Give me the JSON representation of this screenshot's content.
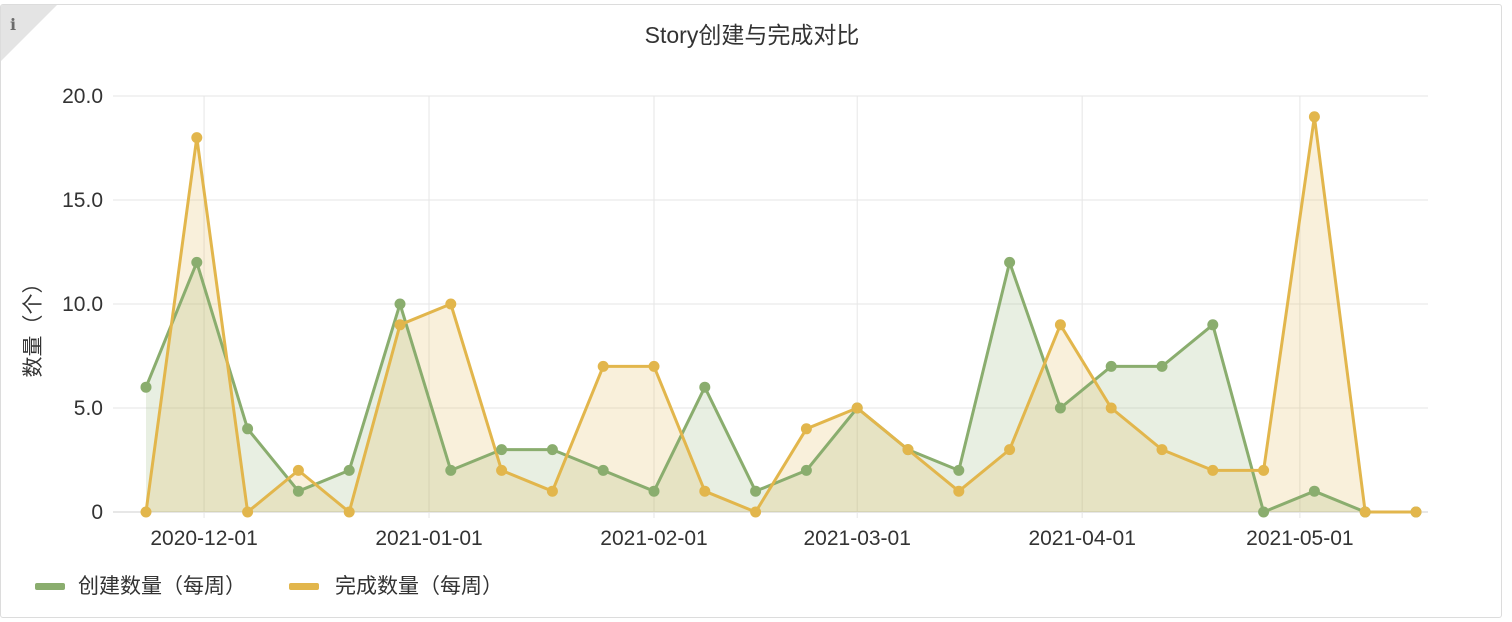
{
  "panel": {
    "info_icon": "i"
  },
  "chart_data": {
    "type": "area",
    "title": "Story创建与完成对比",
    "ylabel": "数量（个）",
    "xlabel": "",
    "ylim": [
      0,
      20
    ],
    "y_ticks": [
      "0",
      "5.0",
      "10.0",
      "15.0",
      "20.0"
    ],
    "y_tick_values": [
      0,
      5,
      10,
      15,
      20
    ],
    "x_ticks": [
      "2020-12-01",
      "2021-01-01",
      "2021-02-01",
      "2021-03-01",
      "2021-04-01",
      "2021-05-01"
    ],
    "x_tick_dates": [
      "2020-12-01",
      "2021-01-01",
      "2021-02-01",
      "2021-03-01",
      "2021-04-01",
      "2021-05-01"
    ],
    "x": [
      "2020-11-23",
      "2020-11-30",
      "2020-12-07",
      "2020-12-14",
      "2020-12-21",
      "2020-12-28",
      "2021-01-04",
      "2021-01-11",
      "2021-01-18",
      "2021-01-25",
      "2021-02-01",
      "2021-02-08",
      "2021-02-15",
      "2021-02-22",
      "2021-03-01",
      "2021-03-08",
      "2021-03-15",
      "2021-03-22",
      "2021-03-29",
      "2021-04-05",
      "2021-04-12",
      "2021-04-19",
      "2021-04-26",
      "2021-05-03",
      "2021-05-10",
      "2021-05-17"
    ],
    "series": [
      {
        "name": "创建数量（每周）",
        "color": "#8aad6e",
        "values": [
          6,
          12,
          4,
          1,
          2,
          10,
          2,
          3,
          3,
          2,
          1,
          6,
          1,
          2,
          5,
          3,
          2,
          12,
          5,
          7,
          7,
          9,
          0,
          1,
          0,
          0
        ]
      },
      {
        "name": "完成数量（每周）",
        "color": "#e2b64c",
        "values": [
          0,
          18,
          0,
          2,
          0,
          9,
          10,
          2,
          1,
          7,
          7,
          1,
          0,
          4,
          5,
          3,
          1,
          3,
          9,
          5,
          3,
          2,
          2,
          19,
          0,
          0
        ]
      }
    ],
    "grid": true,
    "legend": "bottom-left"
  }
}
